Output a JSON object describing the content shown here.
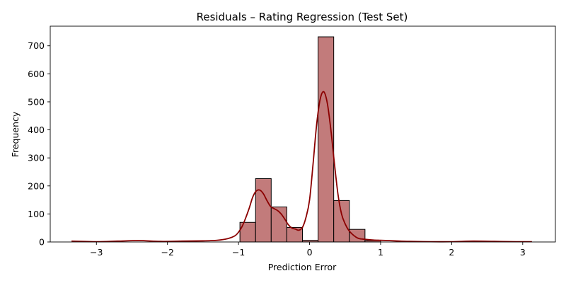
{
  "chart_data": {
    "type": "bar",
    "title": "Residuals – Rating Regression (Test Set)",
    "xlabel": "Prediction Error",
    "ylabel": "Frequency",
    "xlim": [
      -3.65,
      3.46
    ],
    "ylim": [
      0,
      770
    ],
    "x_ticks": [
      {
        "value": -3,
        "label": "−3"
      },
      {
        "value": -2,
        "label": "−2"
      },
      {
        "value": -1,
        "label": "−1"
      },
      {
        "value": 0,
        "label": "0"
      },
      {
        "value": 1,
        "label": "1"
      },
      {
        "value": 2,
        "label": "2"
      },
      {
        "value": 3,
        "label": "3"
      }
    ],
    "y_ticks": [
      {
        "value": 0,
        "label": "0"
      },
      {
        "value": 100,
        "label": "100"
      },
      {
        "value": 200,
        "label": "200"
      },
      {
        "value": 300,
        "label": "300"
      },
      {
        "value": 400,
        "label": "400"
      },
      {
        "value": 500,
        "label": "500"
      },
      {
        "value": 600,
        "label": "600"
      },
      {
        "value": 700,
        "label": "700"
      }
    ],
    "bins": [
      {
        "x0": -0.98,
        "x1": -0.76,
        "count": 70
      },
      {
        "x0": -0.76,
        "x1": -0.54,
        "count": 226
      },
      {
        "x0": -0.54,
        "x1": -0.32,
        "count": 125
      },
      {
        "x0": -0.32,
        "x1": -0.1,
        "count": 52
      },
      {
        "x0": -0.1,
        "x1": 0.12,
        "count": 6
      },
      {
        "x0": 0.12,
        "x1": 0.34,
        "count": 732
      },
      {
        "x0": 0.34,
        "x1": 0.56,
        "count": 148
      },
      {
        "x0": 0.56,
        "x1": 0.78,
        "count": 45
      },
      {
        "x0": 0.78,
        "x1": 1.0,
        "count": 5
      }
    ],
    "kde": {
      "x": [
        -3.35,
        -3.0,
        -2.7,
        -2.4,
        -2.1,
        -1.8,
        -1.5,
        -1.3,
        -1.15,
        -1.05,
        -1.0,
        -0.95,
        -0.9,
        -0.85,
        -0.8,
        -0.75,
        -0.7,
        -0.65,
        -0.6,
        -0.55,
        -0.5,
        -0.45,
        -0.4,
        -0.35,
        -0.3,
        -0.25,
        -0.2,
        -0.15,
        -0.1,
        -0.05,
        0.0,
        0.05,
        0.1,
        0.15,
        0.2,
        0.25,
        0.3,
        0.35,
        0.4,
        0.45,
        0.5,
        0.55,
        0.6,
        0.65,
        0.7,
        0.8,
        0.9,
        1.0,
        1.1,
        1.2,
        1.4,
        1.7,
        2.0,
        2.3,
        2.6,
        2.9,
        3.13
      ],
      "y": [
        3,
        1,
        3,
        5,
        2,
        3,
        4,
        6,
        12,
        22,
        35,
        55,
        85,
        120,
        160,
        182,
        185,
        172,
        148,
        127,
        119,
        112,
        100,
        82,
        62,
        50,
        46,
        42,
        52,
        88,
        150,
        280,
        420,
        510,
        536,
        495,
        400,
        280,
        170,
        100,
        65,
        42,
        28,
        18,
        12,
        9,
        7,
        6,
        5,
        4,
        2,
        1,
        1,
        3,
        2,
        1,
        1
      ]
    },
    "colors": {
      "bar_fill": "#c27b7b",
      "kde_line": "#8b0000"
    },
    "grid": false,
    "legend": "none"
  }
}
